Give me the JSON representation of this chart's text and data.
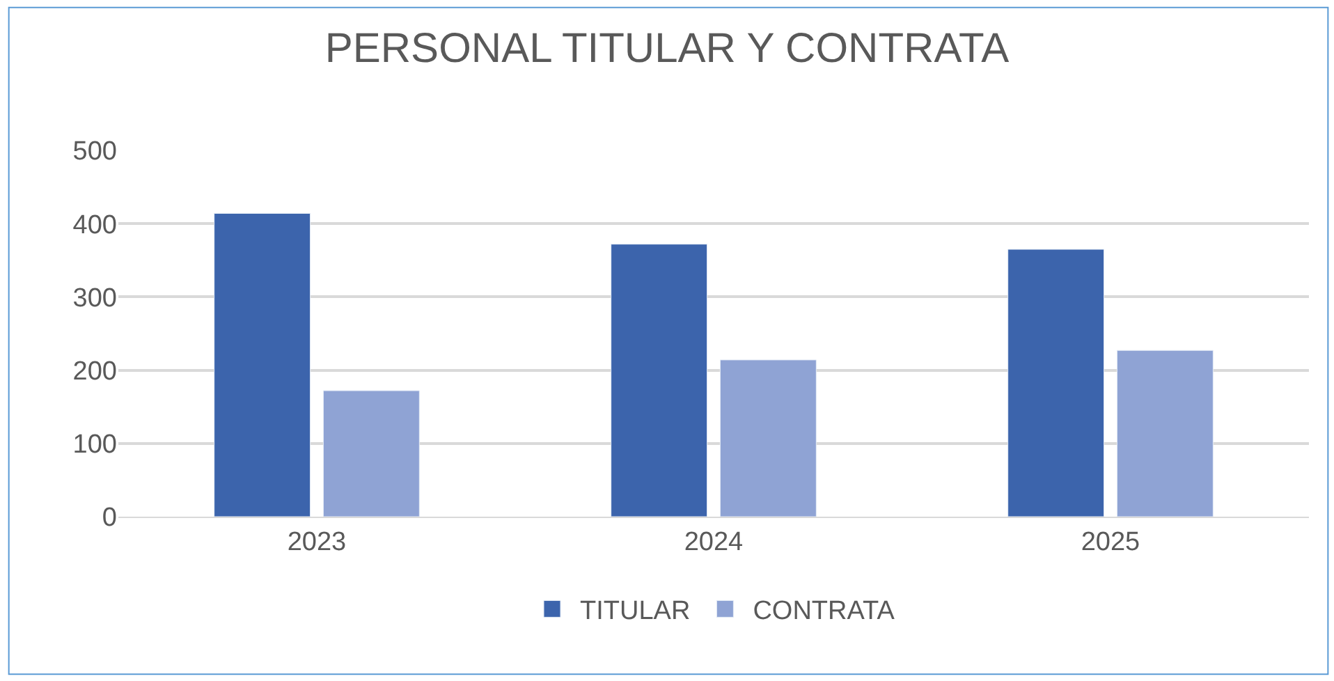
{
  "chart_data": {
    "type": "bar",
    "title": "PERSONAL TITULAR Y CONTRATA",
    "categories": [
      "2023",
      "2024",
      "2025"
    ],
    "series": [
      {
        "name": "TITULAR",
        "color": "#3c64ac",
        "values": [
          414,
          372,
          365
        ]
      },
      {
        "name": "CONTRATA",
        "color": "#8fa3d4",
        "values": [
          172,
          214,
          227
        ]
      }
    ],
    "ylim": [
      0,
      500
    ],
    "yticks": [
      0,
      100,
      200,
      300,
      400,
      500
    ],
    "grid": "y",
    "legend": "bottom"
  }
}
